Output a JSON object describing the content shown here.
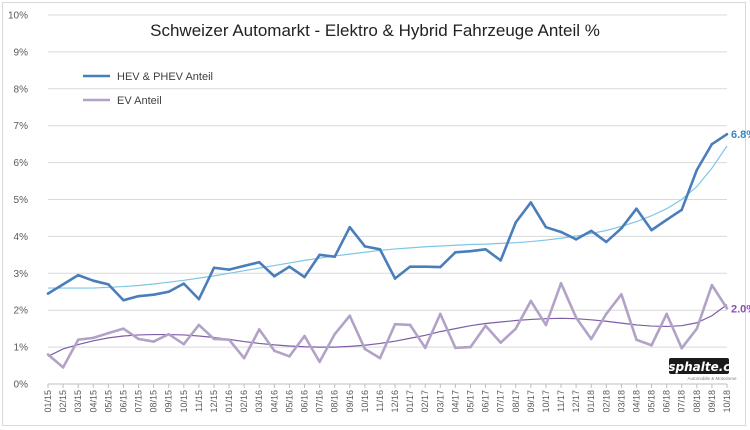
{
  "chart_data": {
    "type": "line",
    "title": "Schweizer Automarkt - Elektro & Hybrid Fahrzeuge Anteil %",
    "xlabel": "",
    "ylabel": "",
    "ylim": [
      0,
      10
    ],
    "y_ticks": [
      "0%",
      "1%",
      "2%",
      "3%",
      "4%",
      "5%",
      "6%",
      "7%",
      "8%",
      "9%",
      "10%"
    ],
    "grid": "horizontal",
    "legend": "top-left",
    "categories": [
      "01/15",
      "02/15",
      "03/15",
      "04/15",
      "05/15",
      "06/15",
      "07/15",
      "08/15",
      "09/15",
      "10/15",
      "11/15",
      "12/15",
      "01/16",
      "02/16",
      "03/16",
      "04/16",
      "05/16",
      "06/16",
      "07/16",
      "08/16",
      "09/16",
      "10/16",
      "11/16",
      "12/16",
      "01/17",
      "02/17",
      "03/17",
      "04/17",
      "05/17",
      "06/17",
      "07/17",
      "08/17",
      "09/17",
      "10/17",
      "11/17",
      "12/17",
      "01/18",
      "02/18",
      "03/18",
      "04/18",
      "05/18",
      "06/18",
      "07/18",
      "08/18",
      "09/18",
      "10/18"
    ],
    "series": [
      {
        "name": "HEV & PHEV Anteil",
        "color": "#4a7ebb",
        "values": [
          2.45,
          2.7,
          2.95,
          2.8,
          2.7,
          2.27,
          2.38,
          2.42,
          2.5,
          2.72,
          2.3,
          3.15,
          3.1,
          3.2,
          3.3,
          2.92,
          3.18,
          2.9,
          3.5,
          3.45,
          4.25,
          3.73,
          3.65,
          2.86,
          3.18,
          3.18,
          3.17,
          3.57,
          3.6,
          3.65,
          3.35,
          4.38,
          4.92,
          4.25,
          4.12,
          3.92,
          4.15,
          3.85,
          4.22,
          4.75,
          4.17,
          4.45,
          4.72,
          5.8,
          6.5,
          6.77
        ],
        "end_label": "6.8%"
      },
      {
        "name": "EV Anteil",
        "color": "#b3a2c7",
        "values": [
          0.8,
          0.45,
          1.2,
          1.25,
          1.38,
          1.5,
          1.22,
          1.15,
          1.35,
          1.08,
          1.6,
          1.22,
          1.2,
          0.7,
          1.48,
          0.9,
          0.75,
          1.3,
          0.6,
          1.35,
          1.85,
          0.95,
          0.7,
          1.62,
          1.6,
          0.98,
          1.9,
          0.98,
          1.0,
          1.58,
          1.12,
          1.5,
          2.25,
          1.6,
          2.73,
          1.8,
          1.22,
          1.9,
          2.43,
          1.2,
          1.05,
          1.9,
          0.97,
          1.5,
          2.68,
          2.05
        ],
        "end_label": "2.0%"
      }
    ],
    "trendlines": [
      {
        "color": "#7fc6e6",
        "values": [
          2.6,
          2.6,
          2.6,
          2.6,
          2.62,
          2.64,
          2.67,
          2.71,
          2.76,
          2.81,
          2.87,
          2.93,
          3.0,
          3.07,
          3.14,
          3.21,
          3.28,
          3.35,
          3.41,
          3.47,
          3.52,
          3.57,
          3.62,
          3.66,
          3.69,
          3.72,
          3.74,
          3.76,
          3.78,
          3.79,
          3.81,
          3.83,
          3.86,
          3.9,
          3.95,
          4.01,
          4.08,
          4.16,
          4.27,
          4.4,
          4.56,
          4.75,
          5.0,
          5.35,
          5.85,
          6.45
        ]
      },
      {
        "color": "#7e5da8",
        "values": [
          0.75,
          0.95,
          1.07,
          1.17,
          1.25,
          1.3,
          1.33,
          1.34,
          1.34,
          1.33,
          1.3,
          1.26,
          1.21,
          1.15,
          1.1,
          1.06,
          1.03,
          1.01,
          1.0,
          1.0,
          1.02,
          1.05,
          1.1,
          1.16,
          1.24,
          1.32,
          1.42,
          1.5,
          1.58,
          1.64,
          1.68,
          1.72,
          1.75,
          1.77,
          1.78,
          1.77,
          1.74,
          1.7,
          1.65,
          1.6,
          1.57,
          1.56,
          1.58,
          1.66,
          1.85,
          2.15
        ]
      }
    ]
  },
  "watermark": {
    "text": "Asphalte.ch",
    "sub": "Automobile & Motorisme"
  }
}
